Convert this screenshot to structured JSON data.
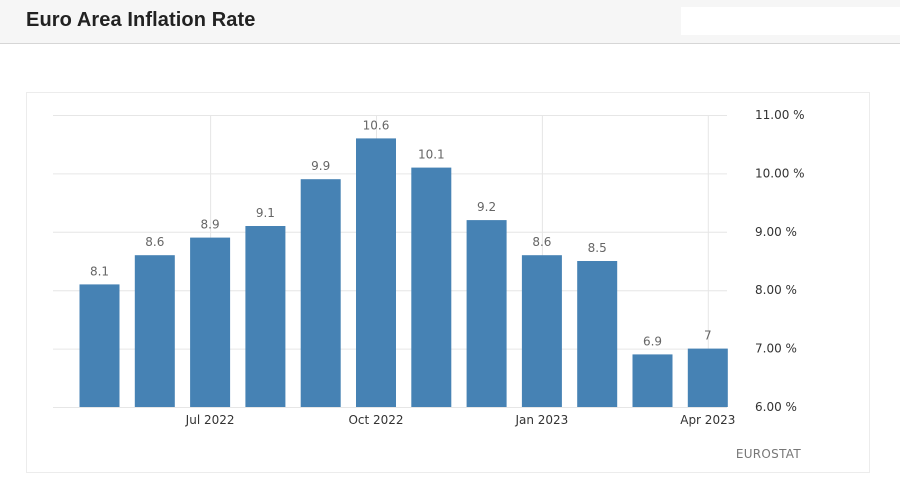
{
  "header": {
    "title": "Euro Area Inflation Rate",
    "search_value": ""
  },
  "chart_data": {
    "type": "bar",
    "categories": [
      "",
      "",
      "Jul 2022",
      "",
      "",
      "Oct 2022",
      "",
      "",
      "Jan 2023",
      "",
      "",
      "Apr 2023"
    ],
    "values": [
      8.1,
      8.6,
      8.9,
      9.1,
      9.9,
      10.6,
      10.1,
      9.2,
      8.6,
      8.5,
      6.9,
      7.0
    ],
    "value_labels": [
      "8.1",
      "8.6",
      "8.9",
      "9.1",
      "9.9",
      "10.6",
      "10.1",
      "9.2",
      "8.6",
      "8.5",
      "6.9",
      "7"
    ],
    "x_tick_labels": [
      "Jul 2022",
      "Oct 2022",
      "Jan 2023",
      "Apr 2023"
    ],
    "y_ticks": [
      6,
      7,
      8,
      9,
      10,
      11
    ],
    "y_tick_labels": [
      "6.00 %",
      "7.00 %",
      "8.00 %",
      "9.00 %",
      "10.00 %",
      "11.00 %"
    ],
    "ylim": [
      6,
      11
    ],
    "grid": true,
    "source": "EUROSTAT",
    "colors": {
      "bar": "#4682b4",
      "grid": "#e6e6e6"
    }
  }
}
